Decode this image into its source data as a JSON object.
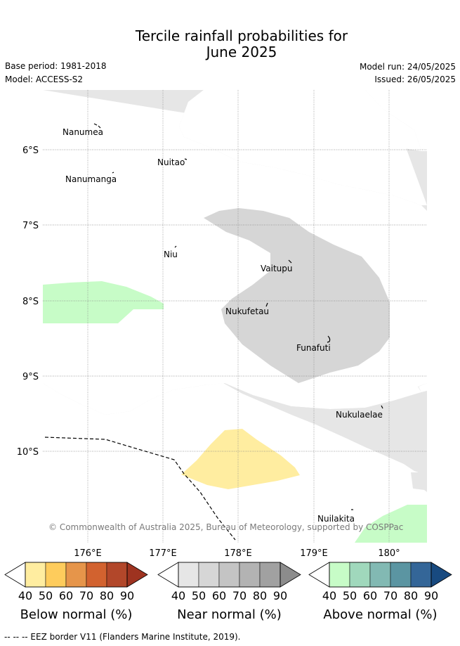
{
  "title": {
    "line1": "Tercile rainfall probabilities for",
    "line2": "June 2025"
  },
  "meta": {
    "base_period": "Base period: 1981-2018",
    "model": "Model: ACCESS-S2",
    "model_run": "Model run: 24/05/2025",
    "issued": "Issued: 26/05/2025"
  },
  "map": {
    "lat_labels": [
      "6°S",
      "7°S",
      "8°S",
      "9°S",
      "10°S"
    ],
    "lon_labels": [
      "176°E",
      "177°E",
      "178°E",
      "179°E",
      "180°"
    ],
    "places": [
      "Nanumea",
      "Nuitao",
      "Nanumanga",
      "Niu",
      "Vaitupu",
      "Nukufetau",
      "Funafuti",
      "Nukulaelae",
      "Nuilakita"
    ],
    "copyright": "© Commonwealth of Australia 2025, Bureau of Meteorology, supported by COSPPac",
    "colors": {
      "near_normal_40": "#e6e6e6",
      "near_normal_50": "#d6d6d6",
      "below_normal_40": "#ffeda0",
      "above_normal_40": "#c7fcc7",
      "eez_border": "#000000"
    }
  },
  "legend": {
    "below": {
      "label": "Below normal (%)",
      "ticks": [
        "40",
        "50",
        "60",
        "70",
        "80",
        "90"
      ],
      "colors": [
        "#ffeda0",
        "#fecc5c",
        "#e6954a",
        "#d2622f",
        "#b2472a",
        "#9e3320"
      ]
    },
    "near": {
      "label": "Near normal (%)",
      "ticks": [
        "40",
        "50",
        "60",
        "70",
        "80",
        "90"
      ],
      "colors": [
        "#e6e6e6",
        "#d6d6d6",
        "#c4c4c4",
        "#b3b3b3",
        "#a1a1a1",
        "#8c8c8c"
      ]
    },
    "above": {
      "label": "Above normal (%)",
      "ticks": [
        "40",
        "50",
        "60",
        "70",
        "80",
        "90"
      ],
      "colors": [
        "#c7fcc7",
        "#a0d8bc",
        "#82b9b3",
        "#5b95a2",
        "#346698",
        "#184a80"
      ]
    }
  },
  "footer": "--  --  -- EEZ border V11 (Flanders Marine Institute, 2019)."
}
